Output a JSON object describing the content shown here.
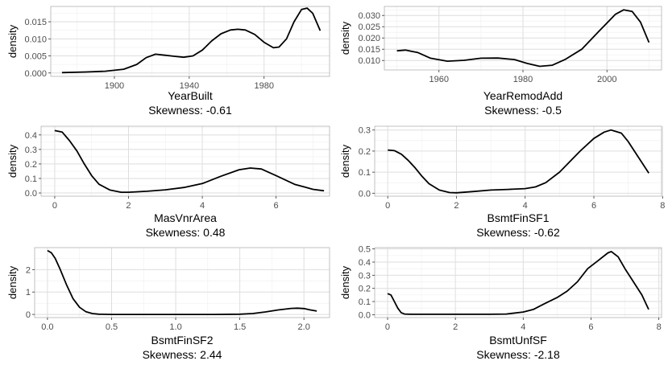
{
  "colors": {
    "grid_major": "#dedede",
    "grid_minor": "#efefef",
    "panel_border": "#b3b3b3",
    "line": "#000000"
  },
  "chart_data": [
    {
      "type": "line",
      "xlabel": "YearBuilt",
      "subtitle": "Skewness: -0.61",
      "ylabel": "density",
      "xlim": [
        1866,
        2015
      ],
      "ylim": [
        -0.001,
        0.0195
      ],
      "xticks": [
        1900,
        1940,
        1980
      ],
      "yticks": [
        0,
        0.005,
        0.01,
        0.015
      ],
      "ytick_labels": [
        "0.000",
        "0.005",
        "0.010",
        "0.015"
      ],
      "series": [
        {
          "x": [
            1872,
            1885,
            1895,
            1905,
            1912,
            1917,
            1922,
            1927,
            1932,
            1937,
            1942,
            1947,
            1952,
            1957,
            1962,
            1966,
            1970,
            1975,
            1980,
            1985,
            1988,
            1992,
            1996,
            2000,
            2003,
            2006,
            2010
          ],
          "y": [
            0.0001,
            0.0003,
            0.0005,
            0.0011,
            0.0025,
            0.0045,
            0.0055,
            0.0052,
            0.0049,
            0.0046,
            0.005,
            0.0067,
            0.0094,
            0.0115,
            0.0126,
            0.0128,
            0.0126,
            0.0113,
            0.009,
            0.0074,
            0.0076,
            0.01,
            0.015,
            0.0186,
            0.019,
            0.0175,
            0.0124
          ]
        }
      ]
    },
    {
      "type": "line",
      "xlabel": "YearRemodAdd",
      "subtitle": "Skewness: -0.5",
      "ylabel": "density",
      "xlim": [
        1947,
        2013
      ],
      "ylim": [
        0.0058,
        0.034
      ],
      "xticks": [
        1960,
        1980,
        2000
      ],
      "yticks": [
        0.01,
        0.015,
        0.02,
        0.025,
        0.03
      ],
      "ytick_labels": [
        "0.010",
        "0.015",
        "0.020",
        "0.025",
        "0.030"
      ],
      "series": [
        {
          "x": [
            1950,
            1952,
            1955,
            1958,
            1962,
            1966,
            1970,
            1974,
            1978,
            1981,
            1984,
            1987,
            1990,
            1994,
            1998,
            2002,
            2004,
            2006,
            2008,
            2010
          ],
          "y": [
            0.0143,
            0.0146,
            0.0135,
            0.011,
            0.0097,
            0.0101,
            0.011,
            0.0111,
            0.0104,
            0.0087,
            0.0074,
            0.0079,
            0.0104,
            0.015,
            0.0228,
            0.0305,
            0.0325,
            0.0318,
            0.027,
            0.018
          ]
        }
      ]
    },
    {
      "type": "line",
      "xlabel": "MasVnrArea",
      "subtitle": "Skewness: 0.48",
      "ylabel": "density",
      "xlim": [
        -0.37,
        7.45
      ],
      "ylim": [
        -0.022,
        0.46
      ],
      "xticks": [
        0,
        2,
        4,
        6
      ],
      "yticks": [
        0,
        0.1,
        0.2,
        0.3,
        0.4
      ],
      "ytick_labels": [
        "0.0",
        "0.1",
        "0.2",
        "0.3",
        "0.4"
      ],
      "series": [
        {
          "x": [
            0,
            0.2,
            0.4,
            0.6,
            0.8,
            1.0,
            1.2,
            1.5,
            1.8,
            2.0,
            2.5,
            3.0,
            3.5,
            4.0,
            4.5,
            5.0,
            5.3,
            5.6,
            6.0,
            6.5,
            7.0,
            7.3
          ],
          "y": [
            0.43,
            0.42,
            0.36,
            0.29,
            0.2,
            0.12,
            0.06,
            0.02,
            0.005,
            0.005,
            0.012,
            0.022,
            0.038,
            0.065,
            0.115,
            0.16,
            0.172,
            0.165,
            0.12,
            0.06,
            0.025,
            0.015
          ]
        }
      ]
    },
    {
      "type": "line",
      "xlabel": "BsmtFinSF1",
      "subtitle": "Skewness: -0.62",
      "ylabel": "density",
      "xlim": [
        -0.38,
        7.97
      ],
      "ylim": [
        -0.014,
        0.318
      ],
      "xticks": [
        0,
        2,
        4,
        6,
        8
      ],
      "yticks": [
        0,
        0.1,
        0.2,
        0.3
      ],
      "ytick_labels": [
        "0.0",
        "0.1",
        "0.2",
        "0.3"
      ],
      "series": [
        {
          "x": [
            0,
            0.2,
            0.4,
            0.6,
            0.8,
            1.0,
            1.2,
            1.5,
            1.8,
            2.0,
            2.5,
            3.0,
            3.5,
            4.0,
            4.3,
            4.6,
            5.0,
            5.3,
            5.6,
            6.0,
            6.3,
            6.5,
            6.8,
            7.0,
            7.3,
            7.6
          ],
          "y": [
            0.205,
            0.202,
            0.185,
            0.155,
            0.12,
            0.08,
            0.045,
            0.015,
            0.003,
            0.002,
            0.008,
            0.015,
            0.018,
            0.022,
            0.03,
            0.05,
            0.1,
            0.15,
            0.2,
            0.26,
            0.29,
            0.3,
            0.285,
            0.245,
            0.17,
            0.095
          ]
        }
      ]
    },
    {
      "type": "line",
      "xlabel": "BsmtFinSF2",
      "subtitle": "Skewness: 2.44",
      "ylabel": "density",
      "xlim": [
        -0.1,
        2.2
      ],
      "ylim": [
        -0.14,
        2.98
      ],
      "xticks": [
        0,
        0.5,
        1.0,
        1.5,
        2.0
      ],
      "yticks": [
        0,
        1,
        2
      ],
      "xtick_labels": [
        "0.0",
        "0.5",
        "1.0",
        "1.5",
        "2.0"
      ],
      "ytick_labels": [
        "0",
        "1",
        "2"
      ],
      "series": [
        {
          "x": [
            0,
            0.03,
            0.06,
            0.1,
            0.15,
            0.2,
            0.25,
            0.3,
            0.35,
            0.4,
            0.5,
            0.7,
            1.0,
            1.3,
            1.5,
            1.6,
            1.7,
            1.8,
            1.9,
            1.95,
            2.0,
            2.05,
            2.1
          ],
          "y": [
            2.85,
            2.75,
            2.5,
            2.0,
            1.3,
            0.7,
            0.32,
            0.12,
            0.04,
            0.01,
            0.0,
            0.0,
            0.0,
            0.0,
            0.01,
            0.04,
            0.11,
            0.2,
            0.27,
            0.28,
            0.26,
            0.2,
            0.15
          ]
        }
      ]
    },
    {
      "type": "line",
      "xlabel": "BsmtUnfSF",
      "subtitle": "Skewness: -2.18",
      "ylabel": "density",
      "xlim": [
        -0.38,
        8.08
      ],
      "ylim": [
        -0.022,
        0.51
      ],
      "xticks": [
        0,
        2,
        4,
        6,
        8
      ],
      "yticks": [
        0,
        0.1,
        0.2,
        0.3,
        0.4,
        0.5
      ],
      "ytick_labels": [
        "0.0",
        "0.1",
        "0.2",
        "0.3",
        "0.4",
        "0.5"
      ],
      "series": [
        {
          "x": [
            0,
            0.1,
            0.2,
            0.3,
            0.4,
            0.5,
            0.7,
            1.0,
            2.0,
            3.0,
            3.5,
            4.0,
            4.3,
            4.6,
            5.0,
            5.3,
            5.6,
            5.9,
            6.2,
            6.5,
            6.6,
            6.8,
            7.0,
            7.2,
            7.5,
            7.7
          ],
          "y": [
            0.16,
            0.15,
            0.1,
            0.05,
            0.015,
            0.005,
            0.003,
            0.003,
            0.003,
            0.003,
            0.005,
            0.02,
            0.04,
            0.08,
            0.13,
            0.18,
            0.25,
            0.35,
            0.41,
            0.47,
            0.48,
            0.44,
            0.35,
            0.27,
            0.15,
            0.04
          ]
        }
      ]
    }
  ]
}
